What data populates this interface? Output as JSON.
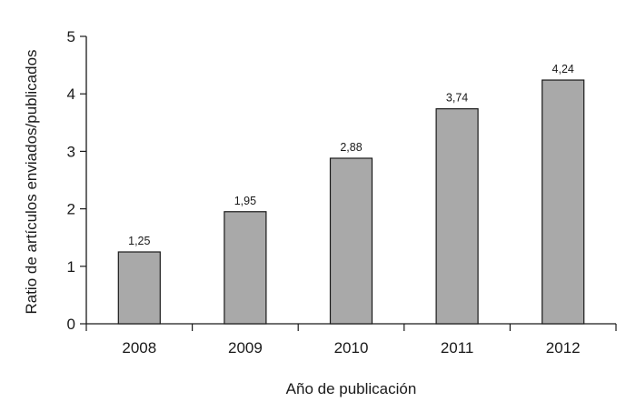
{
  "chart_data": {
    "type": "bar",
    "categories": [
      "2008",
      "2009",
      "2010",
      "2011",
      "2012"
    ],
    "values": [
      1.25,
      1.95,
      2.88,
      3.74,
      4.24
    ],
    "value_labels": [
      "1,25",
      "1,95",
      "2,88",
      "3,74",
      "4,24"
    ],
    "title": "",
    "xlabel": "Año de publicación",
    "ylabel": "Ratio de artículos enviados/publicados",
    "ylim": [
      0,
      5
    ],
    "yticks": [
      0,
      1,
      2,
      3,
      4,
      5
    ],
    "ytick_labels": [
      "0",
      "1",
      "2",
      "3",
      "4",
      "5"
    ],
    "grid": false,
    "legend": "none",
    "colors": {
      "bar_fill": "#a9a9a9",
      "bar_edge": "#1a1a1a"
    }
  }
}
